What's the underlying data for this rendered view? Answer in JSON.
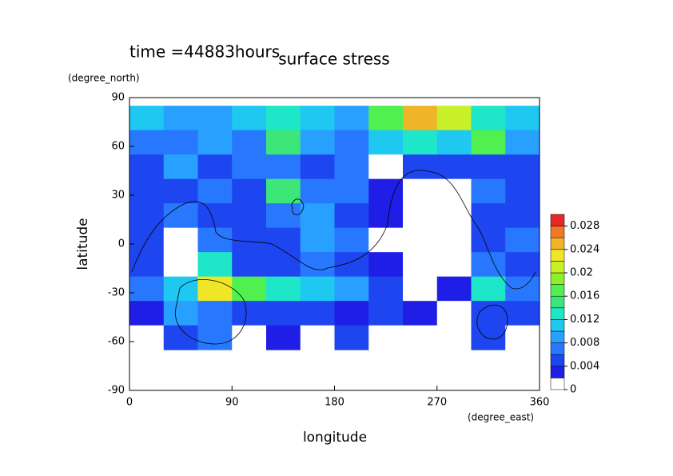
{
  "chart_data": {
    "type": "contour",
    "title": "surface stress",
    "annotation": "time =44883hours",
    "x_label": "longitude",
    "x_unit": "(degree_east)",
    "y_label": "latitude",
    "y_unit": "(degree_north)",
    "xlim": [
      0,
      360
    ],
    "xticks": [
      0,
      90,
      180,
      270,
      360
    ],
    "ylim": [
      -90,
      90
    ],
    "yticks": [
      90,
      60,
      30,
      0,
      -30,
      -60,
      -90
    ],
    "x": [
      15,
      45,
      75,
      105,
      135,
      165,
      195,
      225,
      255,
      285,
      315,
      345
    ],
    "y": [
      77.5,
      62.5,
      47.5,
      32.5,
      17.5,
      2.5,
      -12.5,
      -27.5,
      -42.5,
      -57.5
    ],
    "z": [
      [
        0.01,
        0.008,
        0.008,
        0.01,
        0.012,
        0.01,
        0.008,
        0.016,
        0.024,
        0.02,
        0.012,
        0.01
      ],
      [
        0.006,
        0.006,
        0.008,
        0.006,
        0.014,
        0.008,
        0.006,
        0.01,
        0.012,
        0.01,
        0.016,
        0.008
      ],
      [
        0.004,
        0.008,
        0.004,
        0.006,
        0.006,
        0.004,
        0.006,
        0,
        0.004,
        0.004,
        0.004,
        0.004
      ],
      [
        0.004,
        0.004,
        0.006,
        0.004,
        0.014,
        0.006,
        0.006,
        0.002,
        0,
        0,
        0.006,
        0.004
      ],
      [
        0.004,
        0.006,
        0.004,
        0.004,
        0.006,
        0.008,
        0.004,
        0.002,
        0,
        0,
        0.004,
        0.004
      ],
      [
        0.004,
        0,
        0.006,
        0.004,
        0.004,
        0.008,
        0.006,
        0,
        0,
        0,
        0.004,
        0.006
      ],
      [
        0.004,
        0,
        0.012,
        0.004,
        0.004,
        0.006,
        0.004,
        0.002,
        0,
        0,
        0.006,
        0.004
      ],
      [
        0.006,
        0.01,
        0.022,
        0.016,
        0.012,
        0.01,
        0.008,
        0.004,
        0,
        0.002,
        0.012,
        0.006
      ],
      [
        0.002,
        0.008,
        0.006,
        0.004,
        0.004,
        0.004,
        0.002,
        0.004,
        0.002,
        0,
        0.004,
        0.004
      ],
      [
        0,
        0.004,
        0.006,
        0,
        0.002,
        0,
        0.004,
        0,
        0,
        0,
        0.004,
        0
      ]
    ],
    "colorbar": {
      "levels": [
        0,
        0.002,
        0.004,
        0.006,
        0.008,
        0.01,
        0.012,
        0.014,
        0.016,
        0.018,
        0.02,
        0.022,
        0.024,
        0.026,
        0.028,
        0.03
      ],
      "colors": [
        "#ffffff",
        "#1e1ee6",
        "#1e46f0",
        "#2878ff",
        "#28a0ff",
        "#1ec8f0",
        "#1ee6c8",
        "#3ce678",
        "#50f050",
        "#8cf028",
        "#c8f028",
        "#f0e628",
        "#f0b428",
        "#f07828",
        "#e62828"
      ],
      "ticks": [
        0,
        0.004,
        0.008,
        0.012,
        0.016,
        0.02,
        0.024,
        0.028
      ]
    }
  }
}
